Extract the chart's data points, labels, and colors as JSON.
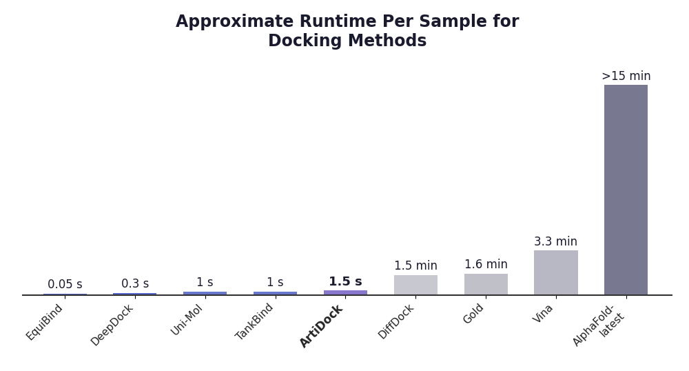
{
  "categories": [
    "EquiBind",
    "DeepDock",
    "Uni-Mol",
    "TankBind",
    "ArtiDock",
    "DiffDock",
    "Gold",
    "Vina",
    "AlphaFold-\nlatest"
  ],
  "plot_heights": [
    0.12,
    0.18,
    0.28,
    0.28,
    0.35,
    1.5,
    1.6,
    3.3,
    15.5
  ],
  "bar_colors": [
    "#5566cc",
    "#5566cc",
    "#6677cc",
    "#6677cc",
    "#8877cc",
    "#c8c8d0",
    "#c0c0c8",
    "#b8b8c4",
    "#787890"
  ],
  "bar_labels": [
    "0.05 s",
    "0.3 s",
    "1 s",
    "1 s",
    "1.5 s",
    "1.5 min",
    "1.6 min",
    "3.3 min",
    ">15 min"
  ],
  "label_bold": [
    false,
    false,
    false,
    false,
    true,
    false,
    false,
    false,
    false
  ],
  "artidock_idx": 4,
  "title": "Approximate Runtime Per Sample for\nDocking Methods",
  "title_fontsize": 17,
  "tick_fontsize": 11,
  "label_fontsize": 12,
  "background_color": "#ffffff",
  "ylim": [
    0,
    17.5
  ],
  "bar_width": 0.62
}
